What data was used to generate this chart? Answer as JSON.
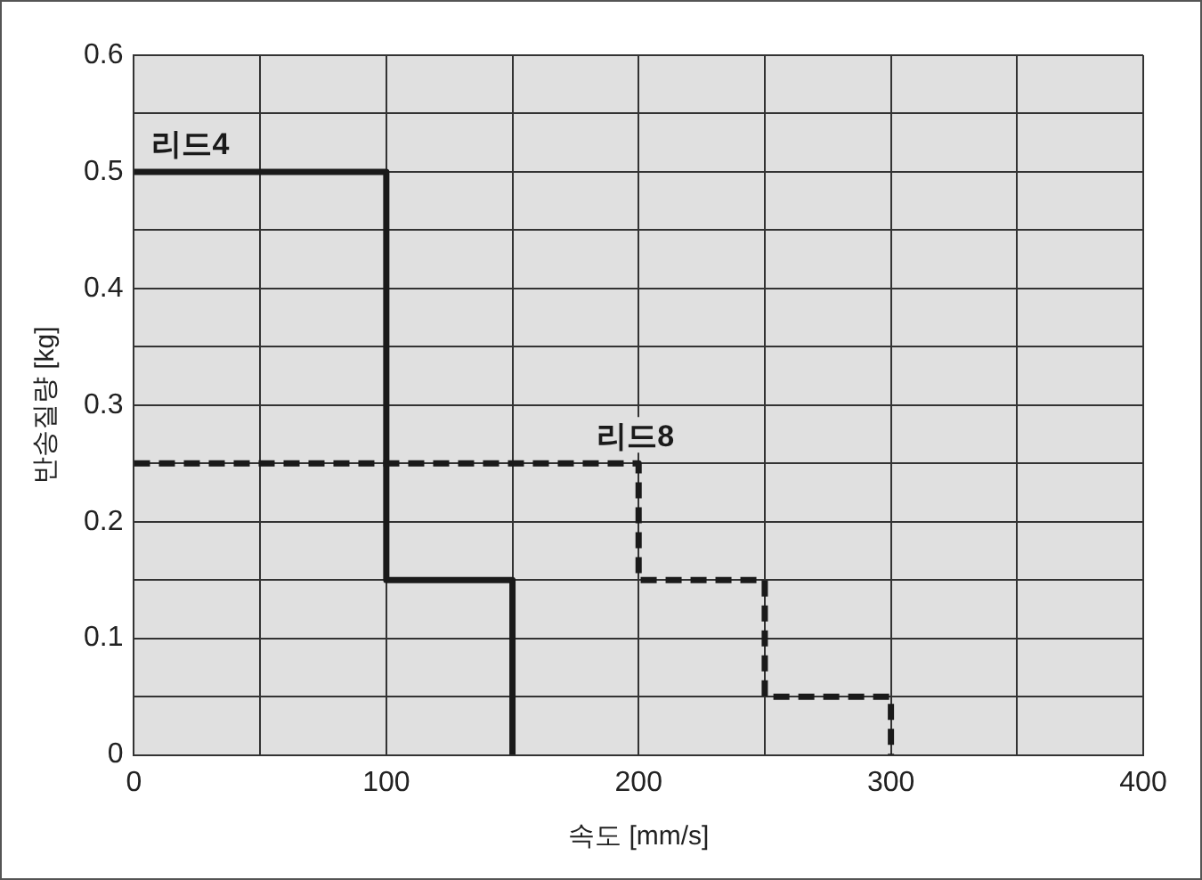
{
  "chart_data": {
    "type": "step",
    "xlabel": "속도 [mm/s]",
    "ylabel": "반송질량 [kg]",
    "xlim": [
      0,
      400
    ],
    "ylim": [
      0,
      0.6
    ],
    "xticks": [
      0,
      {
        "value": 50,
        "label": null
      },
      100,
      {
        "value": 150,
        "label": null
      },
      200,
      {
        "value": 250,
        "label": null
      },
      300,
      {
        "value": 350,
        "label": null
      },
      400
    ],
    "yticks": [
      0,
      {
        "value": 0.05,
        "label": null
      },
      0.1,
      {
        "value": 0.15,
        "label": null
      },
      0.2,
      {
        "value": 0.25,
        "label": null
      },
      0.3,
      {
        "value": 0.35,
        "label": null
      },
      0.4,
      {
        "value": 0.45,
        "label": null
      },
      0.5,
      {
        "value": 0.55,
        "label": null
      },
      0.6
    ],
    "grid": true,
    "legend": false,
    "marker": "none",
    "series": [
      {
        "name": "리드4",
        "color": "#1a1a1a",
        "line_style": "solid",
        "x": [
          0,
          100,
          150
        ],
        "values": [
          0.5,
          0.15,
          0
        ]
      },
      {
        "name": "리드8",
        "color": "#1a1a1a",
        "line_style": "dashed",
        "x": [
          0,
          200,
          250,
          300
        ],
        "values": [
          0.25,
          0.15,
          0.05,
          0
        ]
      }
    ]
  }
}
